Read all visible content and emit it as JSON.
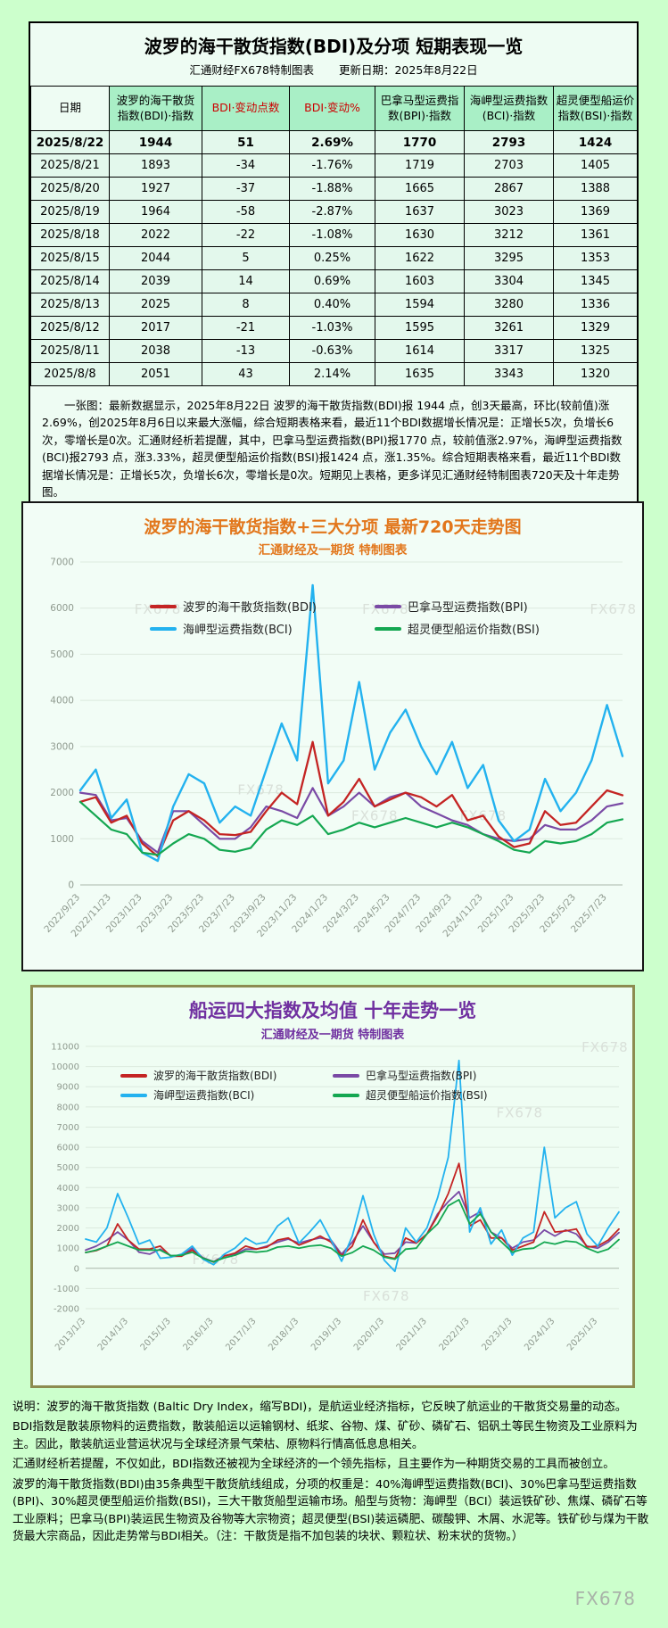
{
  "page": {
    "watermark": "FX678"
  },
  "table_section": {
    "title": "波罗的海干散货指数(BDI)及分项 短期表现一览",
    "source": "汇通财经FX678特制图表",
    "updated": "更新日期：2025年8月22日",
    "columns": [
      "日期",
      "波罗的海干散货指数(BDI)·指数",
      "BDI·变动点数",
      "BDI·变动%",
      "巴拿马型运费指数(BPI)·指数",
      "海岬型运费指数(BCI)·指数",
      "超灵便型船运价指数(BSI)·指数"
    ],
    "rows": [
      [
        "2025/8/22",
        "1944",
        "51",
        "2.69%",
        "1770",
        "2793",
        "1424"
      ],
      [
        "2025/8/21",
        "1893",
        "-34",
        "-1.76%",
        "1719",
        "2703",
        "1405"
      ],
      [
        "2025/8/20",
        "1927",
        "-37",
        "-1.88%",
        "1665",
        "2867",
        "1388"
      ],
      [
        "2025/8/19",
        "1964",
        "-58",
        "-2.87%",
        "1637",
        "3023",
        "1369"
      ],
      [
        "2025/8/18",
        "2022",
        "-22",
        "-1.08%",
        "1630",
        "3212",
        "1361"
      ],
      [
        "2025/8/15",
        "2044",
        "5",
        "0.25%",
        "1622",
        "3295",
        "1353"
      ],
      [
        "2025/8/14",
        "2039",
        "14",
        "0.69%",
        "1603",
        "3304",
        "1345"
      ],
      [
        "2025/8/13",
        "2025",
        "8",
        "0.40%",
        "1594",
        "3280",
        "1336"
      ],
      [
        "2025/8/12",
        "2017",
        "-21",
        "-1.03%",
        "1595",
        "3261",
        "1329"
      ],
      [
        "2025/8/11",
        "2038",
        "-13",
        "-0.63%",
        "1614",
        "3317",
        "1325"
      ],
      [
        "2025/8/8",
        "2051",
        "43",
        "2.14%",
        "1635",
        "3343",
        "1320"
      ]
    ],
    "note": "一张图：最新数据显示，2025年8月22日 波罗的海干散货指数(BDI)报 1944 点，创3天最高，环比(较前值)涨2.69%，创2025年8月6日以来最大涨幅，综合短期表格来看，最近11个BDI数据增长情况是：正增长5次，负增长6次，零增长是0次。汇通财经析若提醒，其中，巴拿马型运费指数(BPI)报1770 点，较前值涨2.97%，海岬型运费指数(BCI)报2793 点，涨3.33%，超灵便型船运价指数(BSI)报1424 点，涨1.35%。综合短期表格来看，最近11个BDI数据增长情况是：正增长5次，负增长6次，零增长是0次。短期见上表格，更多详见汇通财经特制图表720天及十年走势图。"
  },
  "chart_data": [
    {
      "type": "line",
      "title": "波罗的海干散货指数+三大分项  最新720天走势图",
      "subtitle": "汇通财经及一期货 特制图表",
      "ylim": [
        0,
        7000
      ],
      "ytick_step": 1000,
      "grid": true,
      "legend_position": "top-overlay",
      "tick_font": 10.5,
      "x_label_every": 2,
      "x_labels": [
        "2022/9/23",
        "2022/11/23",
        "2023/1/23",
        "2023/3/23",
        "2023/5/23",
        "2023/7/23",
        "2023/9/23",
        "2023/11/23",
        "2024/1/23",
        "2024/3/23",
        "2024/5/23",
        "2024/7/23",
        "2024/9/23",
        "2024/11/23",
        "2025/1/23",
        "2025/3/23",
        "2025/5/23",
        "2025/7/23"
      ],
      "margins": {
        "l": 62,
        "r": 22,
        "t": 8,
        "b": 92
      },
      "draw_order": [
        1,
        0,
        2,
        3
      ],
      "watermarks": [
        [
          0.1,
          0.16
        ],
        [
          0.52,
          0.16
        ],
        [
          0.94,
          0.16
        ],
        [
          0.29,
          0.72
        ],
        [
          0.5,
          0.8
        ],
        [
          0.7,
          0.8
        ]
      ],
      "series": [
        {
          "name": "波罗的海干散货指数(BDI)",
          "color": "#c42423",
          "width": 2.3,
          "values": [
            1800,
            1900,
            1350,
            1500,
            900,
            620,
            1400,
            1600,
            1400,
            1100,
            1080,
            1150,
            1600,
            2000,
            1750,
            3100,
            1500,
            1800,
            2300,
            1700,
            1850,
            2000,
            1900,
            1700,
            1950,
            1400,
            1500,
            1050,
            820,
            900,
            1600,
            1300,
            1350,
            1700,
            2050,
            1944
          ]
        },
        {
          "name": "巴拿马型运费指数(BPI)",
          "color": "#7a4aa5",
          "width": 2.2,
          "values": [
            2000,
            1950,
            1400,
            1450,
            950,
            700,
            1600,
            1600,
            1300,
            1000,
            1000,
            1250,
            1700,
            1600,
            1450,
            2100,
            1500,
            1700,
            2000,
            1700,
            1900,
            2000,
            1700,
            1550,
            1400,
            1300,
            1100,
            1000,
            950,
            1000,
            1300,
            1200,
            1200,
            1400,
            1700,
            1770
          ]
        },
        {
          "name": "海岬型运费指数(BCI)",
          "color": "#23b2ef",
          "width": 2.4,
          "values": [
            2050,
            2500,
            1450,
            1850,
            700,
            520,
            1700,
            2400,
            2200,
            1350,
            1700,
            1500,
            2500,
            3500,
            2700,
            6500,
            2200,
            2700,
            4400,
            2500,
            3300,
            3800,
            3000,
            2400,
            3100,
            2100,
            2600,
            1400,
            950,
            1200,
            2300,
            1600,
            2000,
            2700,
            3900,
            2793
          ]
        },
        {
          "name": "超灵便型船运价指数(BSI)",
          "color": "#14a751",
          "width": 2.2,
          "values": [
            1800,
            1500,
            1200,
            1100,
            700,
            650,
            900,
            1100,
            1000,
            760,
            720,
            800,
            1200,
            1400,
            1300,
            1500,
            1100,
            1200,
            1350,
            1250,
            1350,
            1450,
            1350,
            1250,
            1350,
            1250,
            1100,
            950,
            760,
            700,
            950,
            900,
            950,
            1100,
            1350,
            1424
          ]
        }
      ]
    },
    {
      "type": "line",
      "title": "船运四大指数及均值 十年走势一览",
      "subtitle": "汇通财经及一期货 特制图表",
      "ylim": [
        -2000,
        11000
      ],
      "ytick_step": 1000,
      "grid": true,
      "legend_position": "top-overlay",
      "tick_font": 10,
      "x_label_every": 4,
      "x_labels": [
        "2013/1/3",
        "2014/1/3",
        "2015/1/3",
        "2016/1/3",
        "2017/1/3",
        "2018/1/3",
        "2019/1/3",
        "2020/1/3",
        "2021/1/3",
        "2022/1/3",
        "2023/1/3",
        "2024/1/3",
        "2025/1/3"
      ],
      "margins": {
        "l": 58,
        "r": 16,
        "t": 6,
        "b": 84
      },
      "draw_order": [
        1,
        0,
        2,
        3
      ],
      "watermarks": [
        [
          0.93,
          0.02
        ],
        [
          0.77,
          0.27
        ],
        [
          0.2,
          0.83
        ],
        [
          0.52,
          0.97
        ]
      ],
      "series": [
        {
          "name": "波罗的海干散货指数(BDI)",
          "color": "#c42423",
          "width": 1.8,
          "values": [
            780,
            880,
            1100,
            2200,
            1400,
            950,
            950,
            1100,
            590,
            600,
            900,
            500,
            310,
            610,
            750,
            1100,
            950,
            1050,
            1400,
            1500,
            1150,
            1350,
            1600,
            1300,
            620,
            1100,
            2400,
            1300,
            600,
            480,
            1500,
            1250,
            1700,
            2600,
            3700,
            5200,
            2100,
            2400,
            1500,
            1500,
            900,
            1100,
            1300,
            2800,
            1800,
            1850,
            1950,
            1050,
            1100,
            1400,
            1944
          ]
        },
        {
          "name": "巴拿马型运费指数(BPI)",
          "color": "#7a4aa5",
          "width": 1.8,
          "values": [
            900,
            1100,
            1400,
            1800,
            1400,
            800,
            700,
            950,
            620,
            620,
            1000,
            520,
            330,
            620,
            700,
            950,
            950,
            1100,
            1300,
            1450,
            1250,
            1400,
            1500,
            1400,
            700,
            1300,
            2100,
            1300,
            700,
            750,
            1300,
            1250,
            1700,
            2700,
            3300,
            3800,
            2500,
            2800,
            1800,
            1500,
            1000,
            1300,
            1400,
            1900,
            1600,
            1900,
            1700,
            1100,
            1000,
            1300,
            1770
          ]
        },
        {
          "name": "海岬型运费指数(BCI)",
          "color": "#23b2ef",
          "width": 1.8,
          "values": [
            1450,
            1300,
            2000,
            3700,
            2500,
            1200,
            1400,
            500,
            550,
            700,
            1100,
            450,
            180,
            700,
            1000,
            1500,
            1200,
            1300,
            2100,
            2500,
            1250,
            1800,
            2400,
            1400,
            350,
            1600,
            3600,
            1700,
            400,
            -150,
            2000,
            1300,
            2000,
            3500,
            5500,
            10300,
            1800,
            3000,
            1200,
            1900,
            650,
            1500,
            1800,
            6000,
            2500,
            3000,
            3300,
            1700,
            1100,
            2000,
            2793
          ]
        },
        {
          "name": "超灵便型船运价指数(BSI)",
          "color": "#14a751",
          "width": 1.8,
          "values": [
            780,
            900,
            1100,
            1300,
            1100,
            900,
            900,
            900,
            620,
            650,
            800,
            500,
            320,
            520,
            650,
            850,
            800,
            850,
            1050,
            1100,
            1000,
            1100,
            1150,
            1000,
            600,
            780,
            1100,
            900,
            550,
            450,
            950,
            1000,
            1700,
            2200,
            3100,
            3400,
            2200,
            2700,
            1800,
            1300,
            800,
            950,
            1000,
            1300,
            1200,
            1350,
            1300,
            1000,
            780,
            950,
            1424
          ]
        }
      ]
    }
  ],
  "notes": [
    "说明：波罗的海干散货指数 (Baltic Dry Index，缩写BDI)，是航运业经济指标，它反映了航运业的干散货交易量的动态。",
    "BDI指数是散装原物料的运费指数，散装船运以运输钢材、纸浆、谷物、煤、矿砂、磷矿石、铝矾土等民生物资及工业原料为主。因此，散装航运业营运状况与全球经济景气荣枯、原物料行情高低息息相关。",
    "汇通财经析若提醒，不仅如此，BDI指数还被视为全球经济的一个领先指标，且主要作为一种期货交易的工具而被创立。",
    "波罗的海干散货指数(BDI)由35条典型干散货航线组成，分项的权重是：40%海岬型运费指数(BCI)、30%巴拿马型运费指数(BPI)、30%超灵便型船运价指数(BSI)，三大干散货船型运输市场。船型与货物：海岬型（BCI）装运铁矿砂、焦煤、磷矿石等工业原料；巴拿马(BPI)装运民生物资及谷物等大宗物资；超灵便型(BSI)装运磷肥、碳酸钾、木屑、水泥等。铁矿砂与煤为干散货最大宗商品，因此走势常与BDI相关。（注：干散货是指不加包装的块状、颗粒状、粉末状的货物。）"
  ]
}
